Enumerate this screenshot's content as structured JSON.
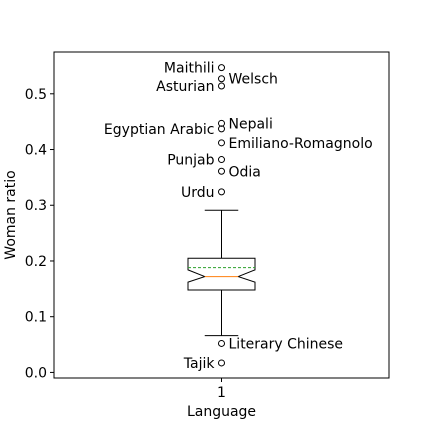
{
  "chart_data": {
    "type": "box",
    "title": "",
    "xlabel": "Language",
    "ylabel": "Woman ratio",
    "ylim": [
      -0.01,
      0.575
    ],
    "x_ticks": [
      {
        "value": 1,
        "label": "1"
      }
    ],
    "y_ticks": [
      {
        "value": 0.0,
        "label": "0.0"
      },
      {
        "value": 0.1,
        "label": "0.1"
      },
      {
        "value": 0.2,
        "label": "0.2"
      },
      {
        "value": 0.3,
        "label": "0.3"
      },
      {
        "value": 0.4,
        "label": "0.4"
      },
      {
        "value": 0.5,
        "label": "0.5"
      }
    ],
    "grid": false,
    "notched": true,
    "show_mean_line": true,
    "box": {
      "position": 1,
      "whisker_low": 0.066,
      "q1": 0.148,
      "notch_low": 0.162,
      "median": 0.172,
      "mean": 0.188,
      "notch_high": 0.184,
      "q3": 0.205,
      "whisker_high": 0.291
    },
    "outliers": [
      {
        "label": "Maithili",
        "value": 0.547,
        "side": "left"
      },
      {
        "label": "Welsch",
        "value": 0.527,
        "side": "right"
      },
      {
        "label": "Asturian",
        "value": 0.514,
        "side": "left"
      },
      {
        "label": "Nepali",
        "value": 0.447,
        "side": "right"
      },
      {
        "label": "Egyptian Arabic",
        "value": 0.437,
        "side": "left"
      },
      {
        "label": "Emiliano-Romagnolo",
        "value": 0.412,
        "side": "right"
      },
      {
        "label": "Punjab",
        "value": 0.382,
        "side": "left"
      },
      {
        "label": "Odia",
        "value": 0.361,
        "side": "right"
      },
      {
        "label": "Urdu",
        "value": 0.324,
        "side": "left"
      },
      {
        "label": "Literary Chinese",
        "value": 0.052,
        "side": "right"
      },
      {
        "label": "Tajik",
        "value": 0.017,
        "side": "left"
      }
    ],
    "colors": {
      "median": "#ff7f0e",
      "mean": "#2ca02c",
      "box": "#000000"
    }
  }
}
